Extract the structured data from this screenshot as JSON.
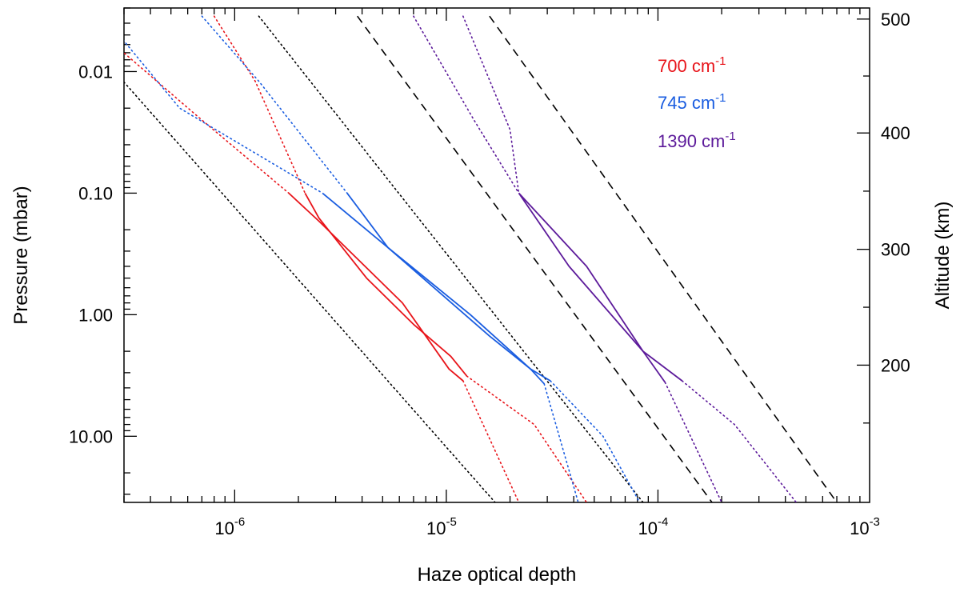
{
  "chart_data": {
    "type": "line",
    "xlabel": "Haze optical depth",
    "ylabel_left": "Pressure (mbar)",
    "ylabel_right": "Altitude (km)",
    "x_scale": "log",
    "xlim": [
      3e-07,
      0.001
    ],
    "y_scale": "log_inverted",
    "ylim": [
      0.003,
      35
    ],
    "x_ticks": [
      {
        "value": 1e-06,
        "base": "10",
        "exp": "-6"
      },
      {
        "value": 1e-05,
        "base": "10",
        "exp": "-5"
      },
      {
        "value": 0.0001,
        "base": "10",
        "exp": "-4"
      },
      {
        "value": 0.001,
        "base": "10",
        "exp": "-3"
      }
    ],
    "y_ticks": [
      {
        "value": 0.01,
        "label": "0.01"
      },
      {
        "value": 0.1,
        "label": "0.10"
      },
      {
        "value": 1,
        "label": "1.00"
      },
      {
        "value": 10,
        "label": "10.00"
      }
    ],
    "right_axis_ticks": [
      {
        "pressure": 0.0037,
        "label": "500"
      },
      {
        "pressure": 0.032,
        "label": "400"
      },
      {
        "pressure": 0.29,
        "label": "300"
      },
      {
        "pressure": 2.6,
        "label": "200"
      }
    ],
    "legend": [
      {
        "text": "700 cm",
        "exp": "-1",
        "color": "#e8141a"
      },
      {
        "text": "745 cm",
        "exp": "-1",
        "color": "#1a5de0"
      },
      {
        "text": "1390 cm",
        "exp": "-1",
        "color": "#5c1a9a"
      }
    ],
    "series": [
      {
        "name": "reference-1",
        "color": "#000000",
        "style": "dotted",
        "points": [
          [
            1e-07,
            0.0014
          ],
          [
            1.7e-05,
            35
          ]
        ]
      },
      {
        "name": "reference-2",
        "color": "#000000",
        "style": "dotted",
        "points": [
          [
            1.3e-06,
            0.0035
          ],
          [
            8.5e-05,
            35
          ]
        ]
      },
      {
        "name": "reference-3",
        "color": "#000000",
        "style": "dashed",
        "points": [
          [
            3.8e-06,
            0.0035
          ],
          [
            0.00018,
            35
          ]
        ]
      },
      {
        "name": "reference-4",
        "color": "#000000",
        "style": "dashed",
        "points": [
          [
            1.6e-05,
            0.0035
          ],
          [
            0.0007,
            35
          ]
        ]
      },
      {
        "name": "700-upper-solid",
        "color": "#e8141a",
        "style": "solid",
        "points": [
          [
            2.15e-06,
            0.1
          ],
          [
            2.5e-06,
            0.16
          ],
          [
            4.2e-06,
            0.5
          ],
          [
            7e-06,
            1.2
          ],
          [
            1.05e-05,
            2.2
          ],
          [
            1.25e-05,
            3.2
          ]
        ]
      },
      {
        "name": "700-lower-solid",
        "color": "#e8141a",
        "style": "solid",
        "points": [
          [
            1.8e-06,
            0.1
          ],
          [
            2.5e-06,
            0.17
          ],
          [
            6.2e-06,
            0.8
          ],
          [
            1.03e-05,
            2.8
          ],
          [
            1.2e-05,
            3.5
          ]
        ]
      },
      {
        "name": "700-upper-dotted-shallow",
        "color": "#e8141a",
        "style": "dotted",
        "points": [
          [
            2.7e-07,
            0.006
          ],
          [
            6.8e-07,
            0.024
          ],
          [
            1.8e-06,
            0.1
          ]
        ]
      },
      {
        "name": "700-upper-dotted-steep",
        "color": "#e8141a",
        "style": "dotted",
        "points": [
          [
            8e-07,
            0.0035
          ],
          [
            1.25e-06,
            0.012
          ],
          [
            2.15e-06,
            0.1
          ]
        ]
      },
      {
        "name": "700-lower-dotted-shallow",
        "color": "#e8141a",
        "style": "dotted",
        "points": [
          [
            1.25e-05,
            3.2
          ],
          [
            2.6e-05,
            8
          ],
          [
            4.6e-05,
            35
          ]
        ]
      },
      {
        "name": "700-lower-dotted-steep",
        "color": "#e8141a",
        "style": "dotted",
        "points": [
          [
            1.2e-05,
            3.5
          ],
          [
            2.2e-05,
            35
          ]
        ]
      },
      {
        "name": "745-upper-solid",
        "color": "#1a5de0",
        "style": "solid",
        "points": [
          [
            3.4e-06,
            0.1
          ],
          [
            5.3e-06,
            0.28
          ],
          [
            1.6e-05,
            1.5
          ],
          [
            2.5e-05,
            2.8
          ],
          [
            2.9e-05,
            3.7
          ]
        ]
      },
      {
        "name": "745-lower-solid",
        "color": "#1a5de0",
        "style": "solid",
        "points": [
          [
            2.6e-06,
            0.1
          ],
          [
            5.3e-06,
            0.28
          ],
          [
            1.3e-05,
            1
          ],
          [
            2.5e-05,
            2.8
          ],
          [
            3.1e-05,
            3.5
          ]
        ]
      },
      {
        "name": "745-upper-dotted-shallow",
        "color": "#1a5de0",
        "style": "dotted",
        "points": [
          [
            2.7e-07,
            0.0045
          ],
          [
            5.5e-07,
            0.02
          ],
          [
            2.6e-06,
            0.1
          ]
        ]
      },
      {
        "name": "745-upper-dotted-steep",
        "color": "#1a5de0",
        "style": "dotted",
        "points": [
          [
            7e-07,
            0.0035
          ],
          [
            1.3e-06,
            0.012
          ],
          [
            3.4e-06,
            0.1
          ]
        ]
      },
      {
        "name": "745-lower-dotted-shallow",
        "color": "#1a5de0",
        "style": "dotted",
        "points": [
          [
            3.1e-05,
            3.5
          ],
          [
            5.5e-05,
            10
          ],
          [
            8.2e-05,
            35
          ]
        ]
      },
      {
        "name": "745-lower-dotted-steep",
        "color": "#1a5de0",
        "style": "dotted",
        "points": [
          [
            2.9e-05,
            3.7
          ],
          [
            4.2e-05,
            35
          ]
        ]
      },
      {
        "name": "1390-upper-solid",
        "color": "#5c1a9a",
        "style": "solid",
        "points": [
          [
            2.2e-05,
            0.1
          ],
          [
            4.6e-05,
            0.4
          ],
          [
            8.5e-05,
            2
          ],
          [
            0.00013,
            3.5
          ]
        ]
      },
      {
        "name": "1390-lower-solid",
        "color": "#5c1a9a",
        "style": "solid",
        "points": [
          [
            2.2e-05,
            0.1
          ],
          [
            3.8e-05,
            0.4
          ],
          [
            8.5e-05,
            2
          ],
          [
            0.000108,
            3.6
          ]
        ]
      },
      {
        "name": "1390-upper-dotted-shallow",
        "color": "#5c1a9a",
        "style": "dotted",
        "points": [
          [
            7e-06,
            0.0035
          ],
          [
            1.35e-05,
            0.025
          ],
          [
            2.2e-05,
            0.1
          ]
        ]
      },
      {
        "name": "1390-upper-dotted-steep",
        "color": "#5c1a9a",
        "style": "dotted",
        "points": [
          [
            1.2e-05,
            0.0035
          ],
          [
            2e-05,
            0.03
          ],
          [
            2.2e-05,
            0.1
          ]
        ]
      },
      {
        "name": "1390-lower-dotted-shallow",
        "color": "#5c1a9a",
        "style": "dotted",
        "points": [
          [
            0.00013,
            3.5
          ],
          [
            0.00023,
            8
          ],
          [
            0.00045,
            35
          ]
        ]
      },
      {
        "name": "1390-lower-dotted-steep",
        "color": "#5c1a9a",
        "style": "dotted",
        "points": [
          [
            0.000108,
            3.6
          ],
          [
            0.0002,
            35
          ]
        ]
      }
    ]
  }
}
